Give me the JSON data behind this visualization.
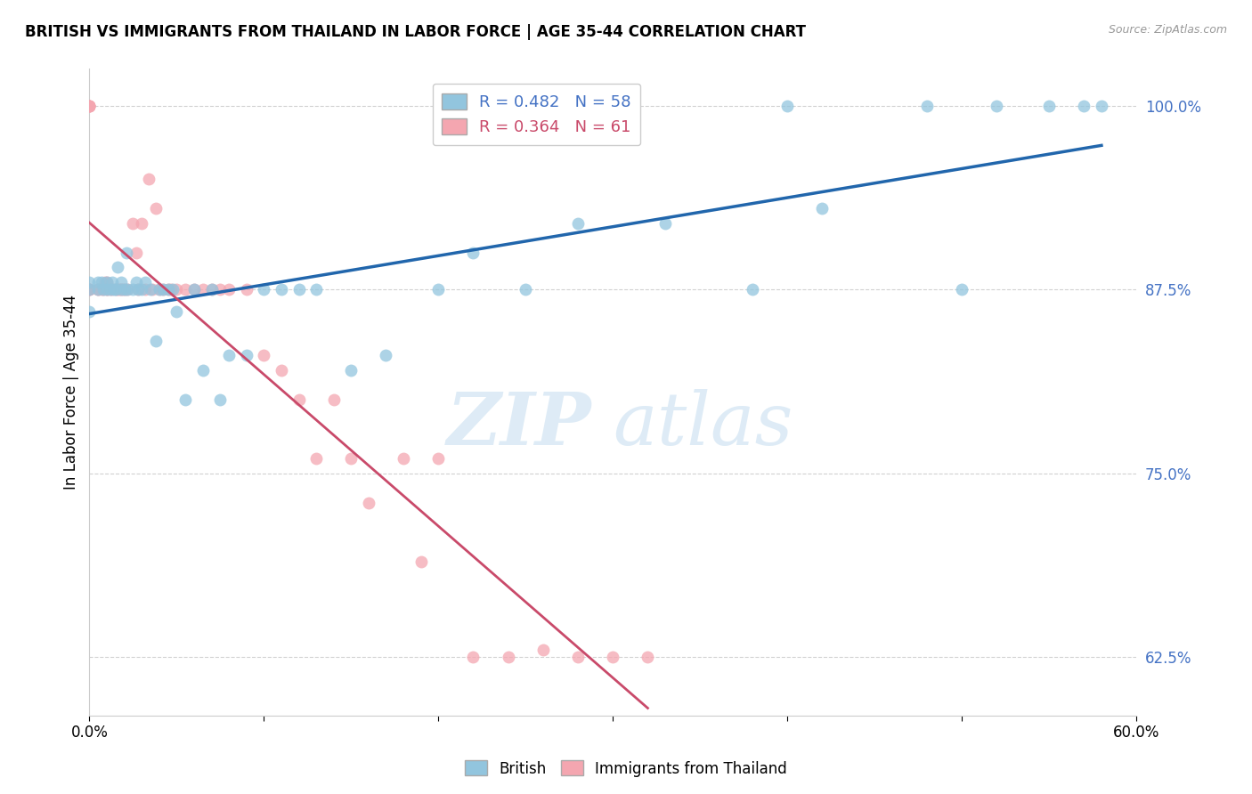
{
  "title": "BRITISH VS IMMIGRANTS FROM THAILAND IN LABOR FORCE | AGE 35-44 CORRELATION CHART",
  "source": "Source: ZipAtlas.com",
  "ylabel": "In Labor Force | Age 35-44",
  "xlim": [
    0.0,
    0.6
  ],
  "ylim": [
    0.585,
    1.025
  ],
  "ytick_labels": [
    "100.0%",
    "87.5%",
    "75.0%",
    "62.5%"
  ],
  "ytick_vals": [
    1.0,
    0.875,
    0.75,
    0.625
  ],
  "blue_color": "#92c5de",
  "pink_color": "#f4a6b0",
  "blue_line_color": "#2166ac",
  "pink_line_color": "#c94a6a",
  "blue_R": 0.482,
  "blue_N": 58,
  "pink_R": 0.364,
  "pink_N": 61,
  "watermark_zip": "ZIP",
  "watermark_atlas": "atlas",
  "blue_scatter_x": [
    0.0,
    0.0,
    0.0,
    0.005,
    0.005,
    0.007,
    0.008,
    0.01,
    0.01,
    0.012,
    0.013,
    0.014,
    0.015,
    0.016,
    0.018,
    0.018,
    0.02,
    0.021,
    0.022,
    0.025,
    0.027,
    0.028,
    0.03,
    0.032,
    0.035,
    0.038,
    0.04,
    0.042,
    0.045,
    0.048,
    0.05,
    0.055,
    0.06,
    0.065,
    0.07,
    0.075,
    0.08,
    0.09,
    0.1,
    0.11,
    0.12,
    0.13,
    0.15,
    0.17,
    0.2,
    0.22,
    0.25,
    0.28,
    0.33,
    0.38,
    0.4,
    0.42,
    0.48,
    0.5,
    0.52,
    0.55,
    0.57,
    0.58
  ],
  "blue_scatter_y": [
    0.875,
    0.86,
    0.88,
    0.875,
    0.88,
    0.88,
    0.875,
    0.875,
    0.88,
    0.875,
    0.88,
    0.875,
    0.875,
    0.89,
    0.875,
    0.88,
    0.875,
    0.9,
    0.875,
    0.875,
    0.88,
    0.875,
    0.875,
    0.88,
    0.875,
    0.84,
    0.875,
    0.875,
    0.875,
    0.875,
    0.86,
    0.8,
    0.875,
    0.82,
    0.875,
    0.8,
    0.83,
    0.83,
    0.875,
    0.875,
    0.875,
    0.875,
    0.82,
    0.83,
    0.875,
    0.9,
    0.875,
    0.92,
    0.92,
    0.875,
    1.0,
    0.93,
    1.0,
    0.875,
    1.0,
    1.0,
    1.0,
    1.0
  ],
  "pink_scatter_x": [
    0.0,
    0.0,
    0.0,
    0.0,
    0.0,
    0.0,
    0.0,
    0.0,
    0.005,
    0.005,
    0.007,
    0.008,
    0.009,
    0.01,
    0.01,
    0.01,
    0.012,
    0.013,
    0.015,
    0.016,
    0.017,
    0.018,
    0.019,
    0.02,
    0.022,
    0.025,
    0.027,
    0.028,
    0.03,
    0.032,
    0.034,
    0.036,
    0.038,
    0.04,
    0.042,
    0.045,
    0.047,
    0.05,
    0.055,
    0.06,
    0.065,
    0.07,
    0.075,
    0.08,
    0.09,
    0.1,
    0.11,
    0.12,
    0.13,
    0.14,
    0.15,
    0.16,
    0.18,
    0.19,
    0.2,
    0.22,
    0.24,
    0.26,
    0.28,
    0.3,
    0.32
  ],
  "pink_scatter_y": [
    1.0,
    1.0,
    1.0,
    1.0,
    1.0,
    0.875,
    0.875,
    0.875,
    0.875,
    0.875,
    0.875,
    0.875,
    0.88,
    0.88,
    0.875,
    0.875,
    0.875,
    0.875,
    0.875,
    0.875,
    0.875,
    0.875,
    0.875,
    0.875,
    0.875,
    0.92,
    0.9,
    0.875,
    0.92,
    0.875,
    0.95,
    0.875,
    0.93,
    0.875,
    0.875,
    0.875,
    0.875,
    0.875,
    0.875,
    0.875,
    0.875,
    0.875,
    0.875,
    0.875,
    0.875,
    0.83,
    0.82,
    0.8,
    0.76,
    0.8,
    0.76,
    0.73,
    0.76,
    0.69,
    0.76,
    0.625,
    0.625,
    0.63,
    0.625,
    0.625,
    0.625
  ]
}
